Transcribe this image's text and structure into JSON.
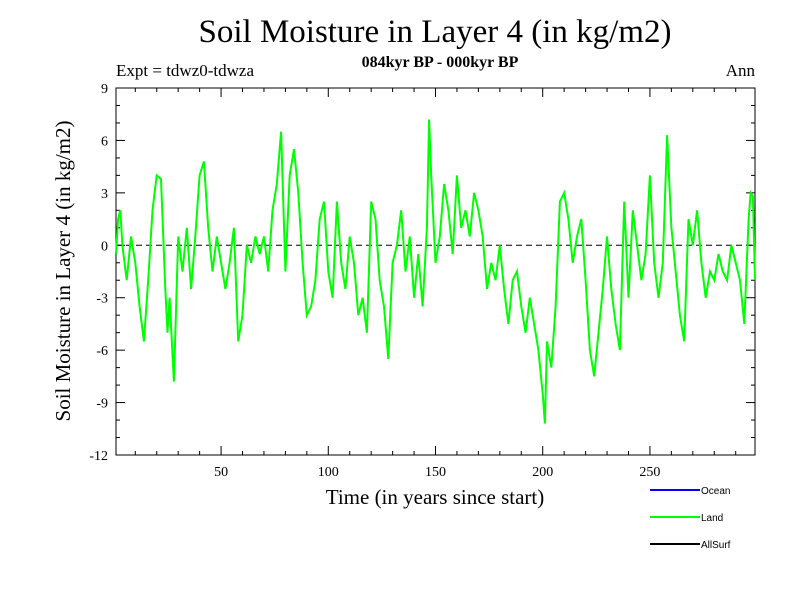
{
  "chart_data": {
    "type": "line",
    "title": "Soil Moisture in Layer 4 (in kg/m2)",
    "subtitle": "084kyr BP - 000kyr BP",
    "experiment": "Expt = tdwz0-tdwza",
    "period": "Ann",
    "xlabel": "Time (in years since start)",
    "ylabel": "Soil Moisture in Layer 4 (in kg/m2)",
    "xlim": [
      1,
      299
    ],
    "ylim": [
      -12,
      9
    ],
    "xticks": [
      50,
      100,
      150,
      200,
      250
    ],
    "yticks": [
      -12,
      -9,
      -6,
      -3,
      0,
      3,
      6,
      9
    ],
    "zero_line": "dashed",
    "legend": [
      {
        "name": "Ocean",
        "color": "#0000ff"
      },
      {
        "name": "Land",
        "color": "#00ff00"
      },
      {
        "name": "AllSurf",
        "color": "#000000"
      }
    ],
    "series": [
      {
        "name": "Land",
        "color": "#00ff00",
        "x": [
          1,
          2,
          3,
          4,
          6,
          8,
          10,
          12,
          14,
          16,
          18,
          20,
          22,
          24,
          25,
          26,
          28,
          30,
          32,
          34,
          36,
          38,
          40,
          42,
          44,
          46,
          48,
          50,
          52,
          54,
          56,
          58,
          60,
          62,
          64,
          66,
          68,
          70,
          72,
          74,
          76,
          78,
          80,
          82,
          84,
          86,
          88,
          90,
          92,
          94,
          96,
          98,
          100,
          102,
          104,
          106,
          108,
          110,
          112,
          114,
          116,
          118,
          120,
          122,
          124,
          126,
          128,
          130,
          132,
          134,
          136,
          138,
          140,
          142,
          144,
          146,
          147,
          148,
          150,
          152,
          154,
          156,
          158,
          160,
          162,
          164,
          166,
          168,
          170,
          172,
          174,
          176,
          178,
          180,
          182,
          184,
          186,
          188,
          190,
          192,
          194,
          196,
          198,
          200,
          201,
          202,
          204,
          206,
          208,
          210,
          212,
          214,
          216,
          218,
          220,
          222,
          224,
          226,
          228,
          230,
          232,
          234,
          236,
          238,
          240,
          242,
          244,
          246,
          248,
          250,
          252,
          254,
          256,
          258,
          260,
          262,
          264,
          266,
          268,
          270,
          272,
          274,
          276,
          278,
          280,
          282,
          284,
          286,
          288,
          290,
          292,
          294,
          296,
          297,
          298,
          299
        ],
        "values": [
          -0.5,
          1.5,
          2.0,
          0.0,
          -2.0,
          0.5,
          -1.0,
          -3.5,
          -5.5,
          -2.0,
          2.0,
          4.0,
          3.8,
          -2.5,
          -5.0,
          -3.0,
          -7.8,
          0.5,
          -1.5,
          1.0,
          -2.5,
          0.5,
          4.0,
          4.8,
          1.0,
          -1.5,
          0.5,
          -1.0,
          -2.5,
          -1.0,
          1.0,
          -5.5,
          -4.0,
          0.0,
          -1.0,
          0.5,
          -0.5,
          0.5,
          -1.5,
          2.0,
          3.5,
          6.5,
          -1.5,
          4.0,
          5.5,
          3.0,
          -1.0,
          -4.0,
          -3.5,
          -2.0,
          1.5,
          2.5,
          -1.5,
          -3.0,
          2.5,
          -1.0,
          -2.5,
          0.5,
          -1.0,
          -4.0,
          -3.0,
          -5.0,
          2.5,
          1.5,
          -2.0,
          -3.5,
          -6.5,
          -1.0,
          0.0,
          2.0,
          -1.5,
          0.5,
          -3.0,
          -0.5,
          -3.5,
          1.0,
          7.2,
          4.0,
          -1.0,
          0.5,
          3.5,
          2.0,
          -0.5,
          4.0,
          1.0,
          2.0,
          0.5,
          3.0,
          2.0,
          0.5,
          -2.5,
          -1.0,
          -2.0,
          0.0,
          -2.5,
          -4.5,
          -2.0,
          -1.5,
          -3.5,
          -5.0,
          -3.0,
          -4.5,
          -6.0,
          -8.5,
          -10.2,
          -5.5,
          -7.0,
          -3.5,
          2.5,
          3.0,
          1.5,
          -1.0,
          0.5,
          1.5,
          -2.0,
          -6.0,
          -7.5,
          -5.0,
          -2.5,
          0.5,
          -2.5,
          -4.5,
          -6.0,
          2.5,
          -3.0,
          2.0,
          0.0,
          -2.0,
          -0.5,
          4.0,
          -1.0,
          -3.0,
          -1.0,
          6.3,
          1.0,
          -1.5,
          -4.0,
          -5.5,
          1.5,
          0.0,
          2.0,
          -1.0,
          -3.0,
          -1.5,
          -2.0,
          -0.5,
          -1.5,
          -2.0,
          0.0,
          -1.0,
          -2.0,
          -4.5,
          1.5,
          3.0,
          2.8,
          -2.0
        ]
      }
    ]
  }
}
